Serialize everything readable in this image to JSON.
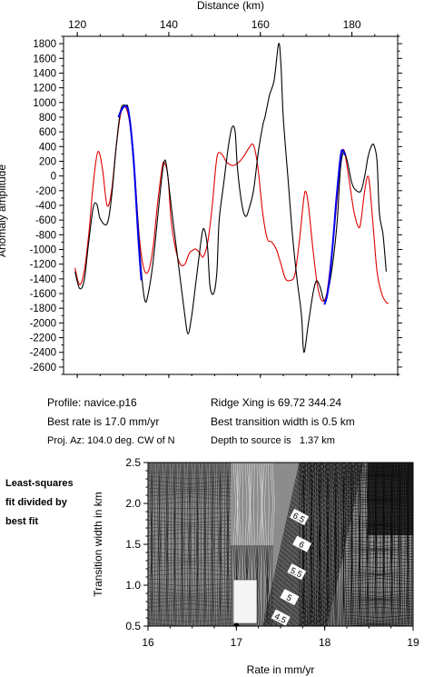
{
  "info": {
    "profile": "Profile: navice.p16",
    "best_rate": "Best rate is 17.0 mm/yr",
    "proj_az": "Proj. Az: 104.0 deg. CW of N",
    "ridge_xing": "Ridge Xing is 69.72 344.24",
    "best_transition": "Best transition width is 0.5 km",
    "depth": "Depth to source is   1.37 km"
  },
  "note": {
    "line1": "Least-squares",
    "line2": "fit divided by",
    "line3": "best fit"
  },
  "colors": {
    "observed": "#000000",
    "model": "#e00000",
    "fit_window": "#0000ee"
  },
  "chart_data": [
    {
      "type": "line",
      "xlabel": "Distance (km)",
      "ylabel": "Anomaly amplitude",
      "xlim": [
        117,
        190
      ],
      "ylim": [
        -2700,
        1900
      ],
      "xticks": [
        120,
        140,
        160,
        180
      ],
      "yticks": [
        1800,
        1600,
        1400,
        1200,
        1000,
        800,
        600,
        400,
        200,
        0,
        -200,
        -400,
        -600,
        -800,
        -1000,
        -1200,
        -1400,
        -1600,
        -1800,
        -2000,
        -2200,
        -2400,
        -2600
      ],
      "x_axis_position": "top",
      "series": [
        {
          "values": [
            [
              119.5,
              -1300
            ],
            [
              120.5,
              -1530
            ],
            [
              121.5,
              -1420
            ],
            [
              122.5,
              -900
            ],
            [
              123.5,
              -420
            ],
            [
              124.3,
              -390
            ],
            [
              125.0,
              -580
            ],
            [
              126.5,
              -650
            ],
            [
              127.5,
              -280
            ],
            [
              128.5,
              400
            ],
            [
              129.5,
              900
            ],
            [
              130.5,
              960
            ],
            [
              131.2,
              900
            ],
            [
              132.0,
              400
            ],
            [
              133.0,
              -400
            ],
            [
              134.0,
              -1300
            ],
            [
              134.8,
              -1700
            ],
            [
              135.5,
              -1600
            ],
            [
              136.5,
              -1200
            ],
            [
              137.5,
              -600
            ],
            [
              138.5,
              0
            ],
            [
              139.0,
              200
            ],
            [
              139.5,
              140
            ],
            [
              140.5,
              -400
            ],
            [
              141.5,
              -900
            ],
            [
              142.5,
              -1400
            ],
            [
              143.5,
              -1900
            ],
            [
              144.2,
              -2150
            ],
            [
              145.0,
              -1900
            ],
            [
              146.0,
              -1400
            ],
            [
              147.0,
              -900
            ],
            [
              147.5,
              -720
            ],
            [
              148.0,
              -780
            ],
            [
              148.5,
              -1000
            ],
            [
              149.0,
              -1500
            ],
            [
              149.8,
              -1600
            ],
            [
              150.5,
              -1300
            ],
            [
              151.0,
              -600
            ],
            [
              152.0,
              -100
            ],
            [
              153.0,
              400
            ],
            [
              153.8,
              660
            ],
            [
              154.5,
              600
            ],
            [
              155.0,
              100
            ],
            [
              156.0,
              -400
            ],
            [
              156.8,
              -550
            ],
            [
              157.5,
              -450
            ],
            [
              158.5,
              -200
            ],
            [
              159.5,
              300
            ],
            [
              160.5,
              680
            ],
            [
              161.0,
              800
            ],
            [
              162.0,
              1100
            ],
            [
              163.0,
              1300
            ],
            [
              164.0,
              1800
            ],
            [
              164.5,
              1500
            ],
            [
              165.0,
              800
            ],
            [
              166.0,
              0
            ],
            [
              167.0,
              -800
            ],
            [
              168.0,
              -1400
            ],
            [
              169.0,
              -1900
            ],
            [
              169.5,
              -2400
            ],
            [
              170.5,
              -2000
            ],
            [
              171.5,
              -1600
            ],
            [
              172.2,
              -1430
            ],
            [
              173.0,
              -1500
            ],
            [
              174.0,
              -1700
            ],
            [
              175.0,
              -1500
            ],
            [
              176.0,
              -1100
            ],
            [
              176.8,
              -600
            ],
            [
              177.5,
              100
            ],
            [
              178.2,
              330
            ],
            [
              179.0,
              200
            ],
            [
              180.0,
              -100
            ],
            [
              181.0,
              -200
            ],
            [
              182.0,
              -200
            ],
            [
              182.8,
              0
            ],
            [
              183.5,
              250
            ],
            [
              184.2,
              400
            ],
            [
              184.8,
              420
            ],
            [
              185.5,
              200
            ],
            [
              186.0,
              -500
            ],
            [
              186.8,
              -800
            ],
            [
              187.5,
              -1300
            ]
          ]
        },
        {
          "values": [
            [
              119.5,
              -1250
            ],
            [
              120.5,
              -1480
            ],
            [
              121.5,
              -1300
            ],
            [
              122.5,
              -800
            ],
            [
              123.5,
              -100
            ],
            [
              124.5,
              330
            ],
            [
              125.5,
              100
            ],
            [
              126.5,
              -400
            ],
            [
              127.5,
              -200
            ],
            [
              128.5,
              400
            ],
            [
              129.5,
              850
            ],
            [
              130.5,
              940
            ],
            [
              131.5,
              700
            ],
            [
              132.5,
              100
            ],
            [
              133.5,
              -800
            ],
            [
              134.5,
              -1250
            ],
            [
              135.5,
              -1300
            ],
            [
              136.5,
              -1000
            ],
            [
              137.5,
              -400
            ],
            [
              138.5,
              100
            ],
            [
              139.0,
              180
            ],
            [
              139.8,
              0
            ],
            [
              140.5,
              -600
            ],
            [
              141.5,
              -1000
            ],
            [
              142.5,
              -1200
            ],
            [
              143.5,
              -1200
            ],
            [
              144.5,
              -1050
            ],
            [
              145.5,
              -1000
            ],
            [
              146.0,
              -1000
            ],
            [
              146.8,
              -1050
            ],
            [
              147.5,
              -1100
            ],
            [
              148.5,
              -900
            ],
            [
              149.5,
              -400
            ],
            [
              150.5,
              250
            ],
            [
              151.5,
              300
            ],
            [
              152.5,
              200
            ],
            [
              153.5,
              150
            ],
            [
              154.5,
              150
            ],
            [
              155.5,
              200
            ],
            [
              156.5,
              280
            ],
            [
              157.5,
              380
            ],
            [
              158.5,
              420
            ],
            [
              159.5,
              100
            ],
            [
              160.5,
              -500
            ],
            [
              161.5,
              -850
            ],
            [
              162.5,
              -900
            ],
            [
              163.5,
              -1000
            ],
            [
              164.5,
              -1200
            ],
            [
              165.5,
              -1400
            ],
            [
              166.5,
              -1420
            ],
            [
              167.5,
              -1350
            ],
            [
              168.5,
              -900
            ],
            [
              169.5,
              -300
            ],
            [
              170.0,
              -220
            ],
            [
              170.5,
              -400
            ],
            [
              171.5,
              -1000
            ],
            [
              172.5,
              -1500
            ],
            [
              173.5,
              -1700
            ],
            [
              174.5,
              -1600
            ],
            [
              175.5,
              -1100
            ],
            [
              176.5,
              -500
            ],
            [
              177.5,
              200
            ],
            [
              178.0,
              350
            ],
            [
              178.5,
              300
            ],
            [
              179.5,
              -100
            ],
            [
              180.5,
              -500
            ],
            [
              181.5,
              -700
            ],
            [
              182.0,
              -600
            ],
            [
              182.8,
              -200
            ],
            [
              183.5,
              0
            ],
            [
              184.0,
              -200
            ],
            [
              184.8,
              -800
            ],
            [
              185.5,
              -1300
            ],
            [
              186.5,
              -1600
            ],
            [
              187.5,
              -1720
            ],
            [
              188.0,
              -1730
            ]
          ]
        },
        {
          "values": [
            [
              129.0,
              800
            ],
            [
              129.5,
              880
            ],
            [
              130.0,
              930
            ],
            [
              130.5,
              950
            ],
            [
              131.0,
              920
            ],
            [
              131.5,
              750
            ],
            [
              132.0,
              450
            ],
            [
              132.5,
              50
            ],
            [
              133.0,
              -500
            ],
            [
              133.5,
              -1000
            ],
            [
              134.0,
              -1420
            ],
            [
              174.0,
              -1750
            ],
            [
              174.5,
              -1650
            ],
            [
              175.0,
              -1450
            ],
            [
              175.5,
              -1150
            ],
            [
              176.0,
              -800
            ],
            [
              176.5,
              -400
            ],
            [
              177.0,
              -50
            ],
            [
              177.5,
              250
            ],
            [
              177.8,
              350
            ],
            [
              178.2,
              330
            ],
            [
              178.5,
              280
            ]
          ]
        }
      ]
    },
    {
      "type": "heatmap",
      "xlabel": "Rate in mm/yr",
      "ylabel": "Transition width in km",
      "xlim": [
        16,
        19
      ],
      "ylim": [
        0.5,
        2.5
      ],
      "xticks": [
        16,
        17,
        18,
        19
      ],
      "yticks": [
        0.5,
        1.0,
        1.5,
        2.0,
        2.5
      ],
      "contour_labels": [
        "6.5",
        "6",
        "5.5",
        "5",
        "4.5"
      ],
      "best_fit_point": [
        17.0,
        0.5
      ]
    }
  ]
}
